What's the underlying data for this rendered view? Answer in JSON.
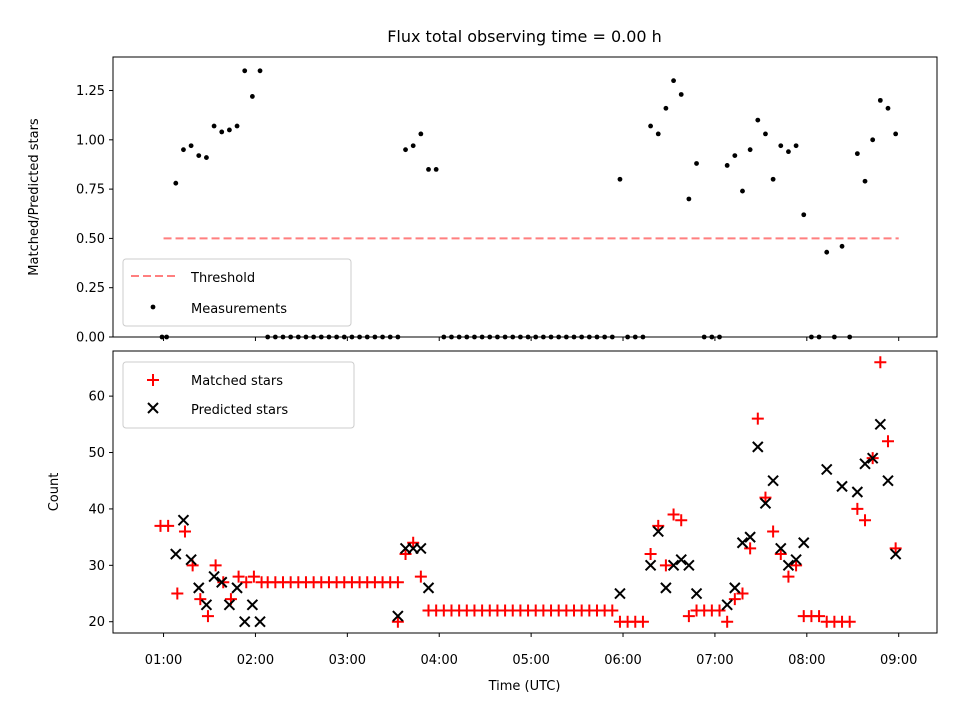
{
  "chart_data": [
    {
      "type": "scatter",
      "title": "Flux total observing time = 0.00 h",
      "ylabel": "Matched/Predicted stars",
      "ylim": [
        0,
        1.42
      ],
      "yticks": [
        "0.00",
        "0.25",
        "0.50",
        "0.75",
        "1.00",
        "1.25"
      ],
      "legend_placement": "lower-left",
      "threshold": {
        "name": "Threshold",
        "value": 0.5,
        "x_start": "01:00",
        "x_end": "09:00",
        "color": "#ff7f7f"
      },
      "series": [
        {
          "name": "Measurements",
          "color": "#000000",
          "points": [
            [
              "00:59",
              0
            ],
            [
              "01:02",
              0
            ],
            [
              "01:08",
              0.78
            ],
            [
              "01:13",
              0.95
            ],
            [
              "01:18",
              0.97
            ],
            [
              "01:23",
              0.92
            ],
            [
              "01:28",
              0.91
            ],
            [
              "01:33",
              1.07
            ],
            [
              "01:38",
              1.04
            ],
            [
              "01:43",
              1.05
            ],
            [
              "01:48",
              1.07
            ],
            [
              "01:53",
              1.35
            ],
            [
              "01:58",
              1.22
            ],
            [
              "02:03",
              1.35
            ],
            [
              "02:08",
              0
            ],
            [
              "02:13",
              0
            ],
            [
              "02:18",
              0
            ],
            [
              "02:23",
              0
            ],
            [
              "02:28",
              0
            ],
            [
              "02:33",
              0
            ],
            [
              "02:38",
              0
            ],
            [
              "02:43",
              0
            ],
            [
              "02:48",
              0
            ],
            [
              "02:53",
              0
            ],
            [
              "02:58",
              0
            ],
            [
              "03:03",
              0
            ],
            [
              "03:08",
              0
            ],
            [
              "03:13",
              0
            ],
            [
              "03:18",
              0
            ],
            [
              "03:23",
              0
            ],
            [
              "03:28",
              0
            ],
            [
              "03:33",
              0
            ],
            [
              "03:38",
              0.95
            ],
            [
              "03:43",
              0.97
            ],
            [
              "03:48",
              1.03
            ],
            [
              "03:53",
              0.85
            ],
            [
              "03:58",
              0.85
            ],
            [
              "04:03",
              0
            ],
            [
              "04:08",
              0
            ],
            [
              "04:13",
              0
            ],
            [
              "04:18",
              0
            ],
            [
              "04:23",
              0
            ],
            [
              "04:28",
              0
            ],
            [
              "04:33",
              0
            ],
            [
              "04:38",
              0
            ],
            [
              "04:43",
              0
            ],
            [
              "04:48",
              0
            ],
            [
              "04:53",
              0
            ],
            [
              "04:58",
              0
            ],
            [
              "05:03",
              0
            ],
            [
              "05:08",
              0
            ],
            [
              "05:13",
              0
            ],
            [
              "05:18",
              0
            ],
            [
              "05:23",
              0
            ],
            [
              "05:28",
              0
            ],
            [
              "05:33",
              0
            ],
            [
              "05:38",
              0
            ],
            [
              "05:43",
              0
            ],
            [
              "05:48",
              0
            ],
            [
              "05:53",
              0
            ],
            [
              "05:58",
              0.8
            ],
            [
              "06:03",
              0
            ],
            [
              "06:08",
              0
            ],
            [
              "06:13",
              0
            ],
            [
              "06:18",
              1.07
            ],
            [
              "06:23",
              1.03
            ],
            [
              "06:28",
              1.16
            ],
            [
              "06:33",
              1.3
            ],
            [
              "06:38",
              1.23
            ],
            [
              "06:43",
              0.7
            ],
            [
              "06:48",
              0.88
            ],
            [
              "06:53",
              0
            ],
            [
              "06:58",
              0
            ],
            [
              "07:03",
              0
            ],
            [
              "07:08",
              0.87
            ],
            [
              "07:13",
              0.92
            ],
            [
              "07:18",
              0.74
            ],
            [
              "07:23",
              0.95
            ],
            [
              "07:28",
              1.1
            ],
            [
              "07:33",
              1.03
            ],
            [
              "07:38",
              0.8
            ],
            [
              "07:43",
              0.97
            ],
            [
              "07:48",
              0.94
            ],
            [
              "07:53",
              0.97
            ],
            [
              "07:58",
              0.62
            ],
            [
              "08:03",
              0
            ],
            [
              "08:08",
              0
            ],
            [
              "08:13",
              0.43
            ],
            [
              "08:18",
              0
            ],
            [
              "08:23",
              0.46
            ],
            [
              "08:28",
              0
            ],
            [
              "08:33",
              0.93
            ],
            [
              "08:38",
              0.79
            ],
            [
              "08:43",
              1.0
            ],
            [
              "08:48",
              1.2
            ],
            [
              "08:53",
              1.16
            ],
            [
              "08:58",
              1.03
            ]
          ]
        }
      ]
    },
    {
      "type": "scatter",
      "xlabel": "Time (UTC)",
      "ylabel": "Count",
      "ylim": [
        18,
        68
      ],
      "yticks": [
        "20",
        "30",
        "40",
        "50",
        "60"
      ],
      "x_range": [
        "00:27",
        "09:25"
      ],
      "xticks": [
        "01:00",
        "02:00",
        "03:00",
        "04:00",
        "05:00",
        "06:00",
        "07:00",
        "08:00",
        "09:00"
      ],
      "legend_placement": "upper-left",
      "series": [
        {
          "name": "Matched stars",
          "marker": "plus",
          "color": "#ff0000",
          "points": [
            [
              "00:58",
              37
            ],
            [
              "01:03",
              37
            ],
            [
              "01:09",
              25
            ],
            [
              "01:14",
              36
            ],
            [
              "01:19",
              30
            ],
            [
              "01:24",
              24
            ],
            [
              "01:29",
              21
            ],
            [
              "01:34",
              30
            ],
            [
              "01:39",
              27
            ],
            [
              "01:44",
              24
            ],
            [
              "01:49",
              28
            ],
            [
              "01:54",
              27
            ],
            [
              "01:59",
              28
            ],
            [
              "02:04",
              27
            ],
            [
              "02:08",
              27
            ],
            [
              "02:13",
              27
            ],
            [
              "02:18",
              27
            ],
            [
              "02:23",
              27
            ],
            [
              "02:28",
              27
            ],
            [
              "02:33",
              27
            ],
            [
              "02:38",
              27
            ],
            [
              "02:43",
              27
            ],
            [
              "02:48",
              27
            ],
            [
              "02:53",
              27
            ],
            [
              "02:58",
              27
            ],
            [
              "03:03",
              27
            ],
            [
              "03:08",
              27
            ],
            [
              "03:13",
              27
            ],
            [
              "03:18",
              27
            ],
            [
              "03:23",
              27
            ],
            [
              "03:28",
              27
            ],
            [
              "03:33",
              27
            ],
            [
              "03:33",
              20
            ],
            [
              "03:38",
              32
            ],
            [
              "03:43",
              34
            ],
            [
              "03:48",
              28
            ],
            [
              "03:53",
              22
            ],
            [
              "03:58",
              22
            ],
            [
              "04:03",
              22
            ],
            [
              "04:08",
              22
            ],
            [
              "04:13",
              22
            ],
            [
              "04:18",
              22
            ],
            [
              "04:23",
              22
            ],
            [
              "04:28",
              22
            ],
            [
              "04:33",
              22
            ],
            [
              "04:38",
              22
            ],
            [
              "04:43",
              22
            ],
            [
              "04:48",
              22
            ],
            [
              "04:53",
              22
            ],
            [
              "04:58",
              22
            ],
            [
              "05:03",
              22
            ],
            [
              "05:08",
              22
            ],
            [
              "05:13",
              22
            ],
            [
              "05:18",
              22
            ],
            [
              "05:23",
              22
            ],
            [
              "05:28",
              22
            ],
            [
              "05:33",
              22
            ],
            [
              "05:38",
              22
            ],
            [
              "05:43",
              22
            ],
            [
              "05:48",
              22
            ],
            [
              "05:53",
              22
            ],
            [
              "05:58",
              20
            ],
            [
              "06:03",
              20
            ],
            [
              "06:08",
              20
            ],
            [
              "06:13",
              20
            ],
            [
              "06:18",
              32
            ],
            [
              "06:23",
              37
            ],
            [
              "06:28",
              30
            ],
            [
              "06:33",
              39
            ],
            [
              "06:38",
              38
            ],
            [
              "06:43",
              21
            ],
            [
              "06:48",
              22
            ],
            [
              "06:53",
              22
            ],
            [
              "06:58",
              22
            ],
            [
              "07:03",
              22
            ],
            [
              "07:08",
              20
            ],
            [
              "07:13",
              24
            ],
            [
              "07:18",
              25
            ],
            [
              "07:23",
              33
            ],
            [
              "07:28",
              56
            ],
            [
              "07:33",
              42
            ],
            [
              "07:38",
              36
            ],
            [
              "07:43",
              32
            ],
            [
              "07:48",
              28
            ],
            [
              "07:53",
              30
            ],
            [
              "07:58",
              21
            ],
            [
              "08:03",
              21
            ],
            [
              "08:08",
              21
            ],
            [
              "08:13",
              20
            ],
            [
              "08:18",
              20
            ],
            [
              "08:23",
              20
            ],
            [
              "08:28",
              20
            ],
            [
              "08:33",
              40
            ],
            [
              "08:38",
              38
            ],
            [
              "08:43",
              49
            ],
            [
              "08:48",
              66
            ],
            [
              "08:53",
              52
            ],
            [
              "08:58",
              33
            ]
          ]
        },
        {
          "name": "Predicted stars",
          "marker": "x",
          "color": "#000000",
          "points": [
            [
              "01:08",
              32
            ],
            [
              "01:13",
              38
            ],
            [
              "01:18",
              31
            ],
            [
              "01:23",
              26
            ],
            [
              "01:28",
              23
            ],
            [
              "01:33",
              28
            ],
            [
              "01:38",
              27
            ],
            [
              "01:43",
              23
            ],
            [
              "01:48",
              26
            ],
            [
              "01:53",
              20
            ],
            [
              "01:58",
              23
            ],
            [
              "02:03",
              20
            ],
            [
              "03:33",
              21
            ],
            [
              "03:38",
              33
            ],
            [
              "03:43",
              33
            ],
            [
              "03:48",
              33
            ],
            [
              "03:53",
              26
            ],
            [
              "05:58",
              25
            ],
            [
              "06:18",
              30
            ],
            [
              "06:23",
              36
            ],
            [
              "06:28",
              26
            ],
            [
              "06:33",
              30
            ],
            [
              "06:38",
              31
            ],
            [
              "06:43",
              30
            ],
            [
              "06:48",
              25
            ],
            [
              "07:08",
              23
            ],
            [
              "07:13",
              26
            ],
            [
              "07:18",
              34
            ],
            [
              "07:23",
              35
            ],
            [
              "07:28",
              51
            ],
            [
              "07:33",
              41
            ],
            [
              "07:38",
              45
            ],
            [
              "07:43",
              33
            ],
            [
              "07:48",
              30
            ],
            [
              "07:53",
              31
            ],
            [
              "07:58",
              34
            ],
            [
              "08:13",
              47
            ],
            [
              "08:23",
              44
            ],
            [
              "08:33",
              43
            ],
            [
              "08:38",
              48
            ],
            [
              "08:43",
              49
            ],
            [
              "08:48",
              55
            ],
            [
              "08:53",
              45
            ],
            [
              "08:58",
              32
            ]
          ]
        }
      ]
    }
  ]
}
